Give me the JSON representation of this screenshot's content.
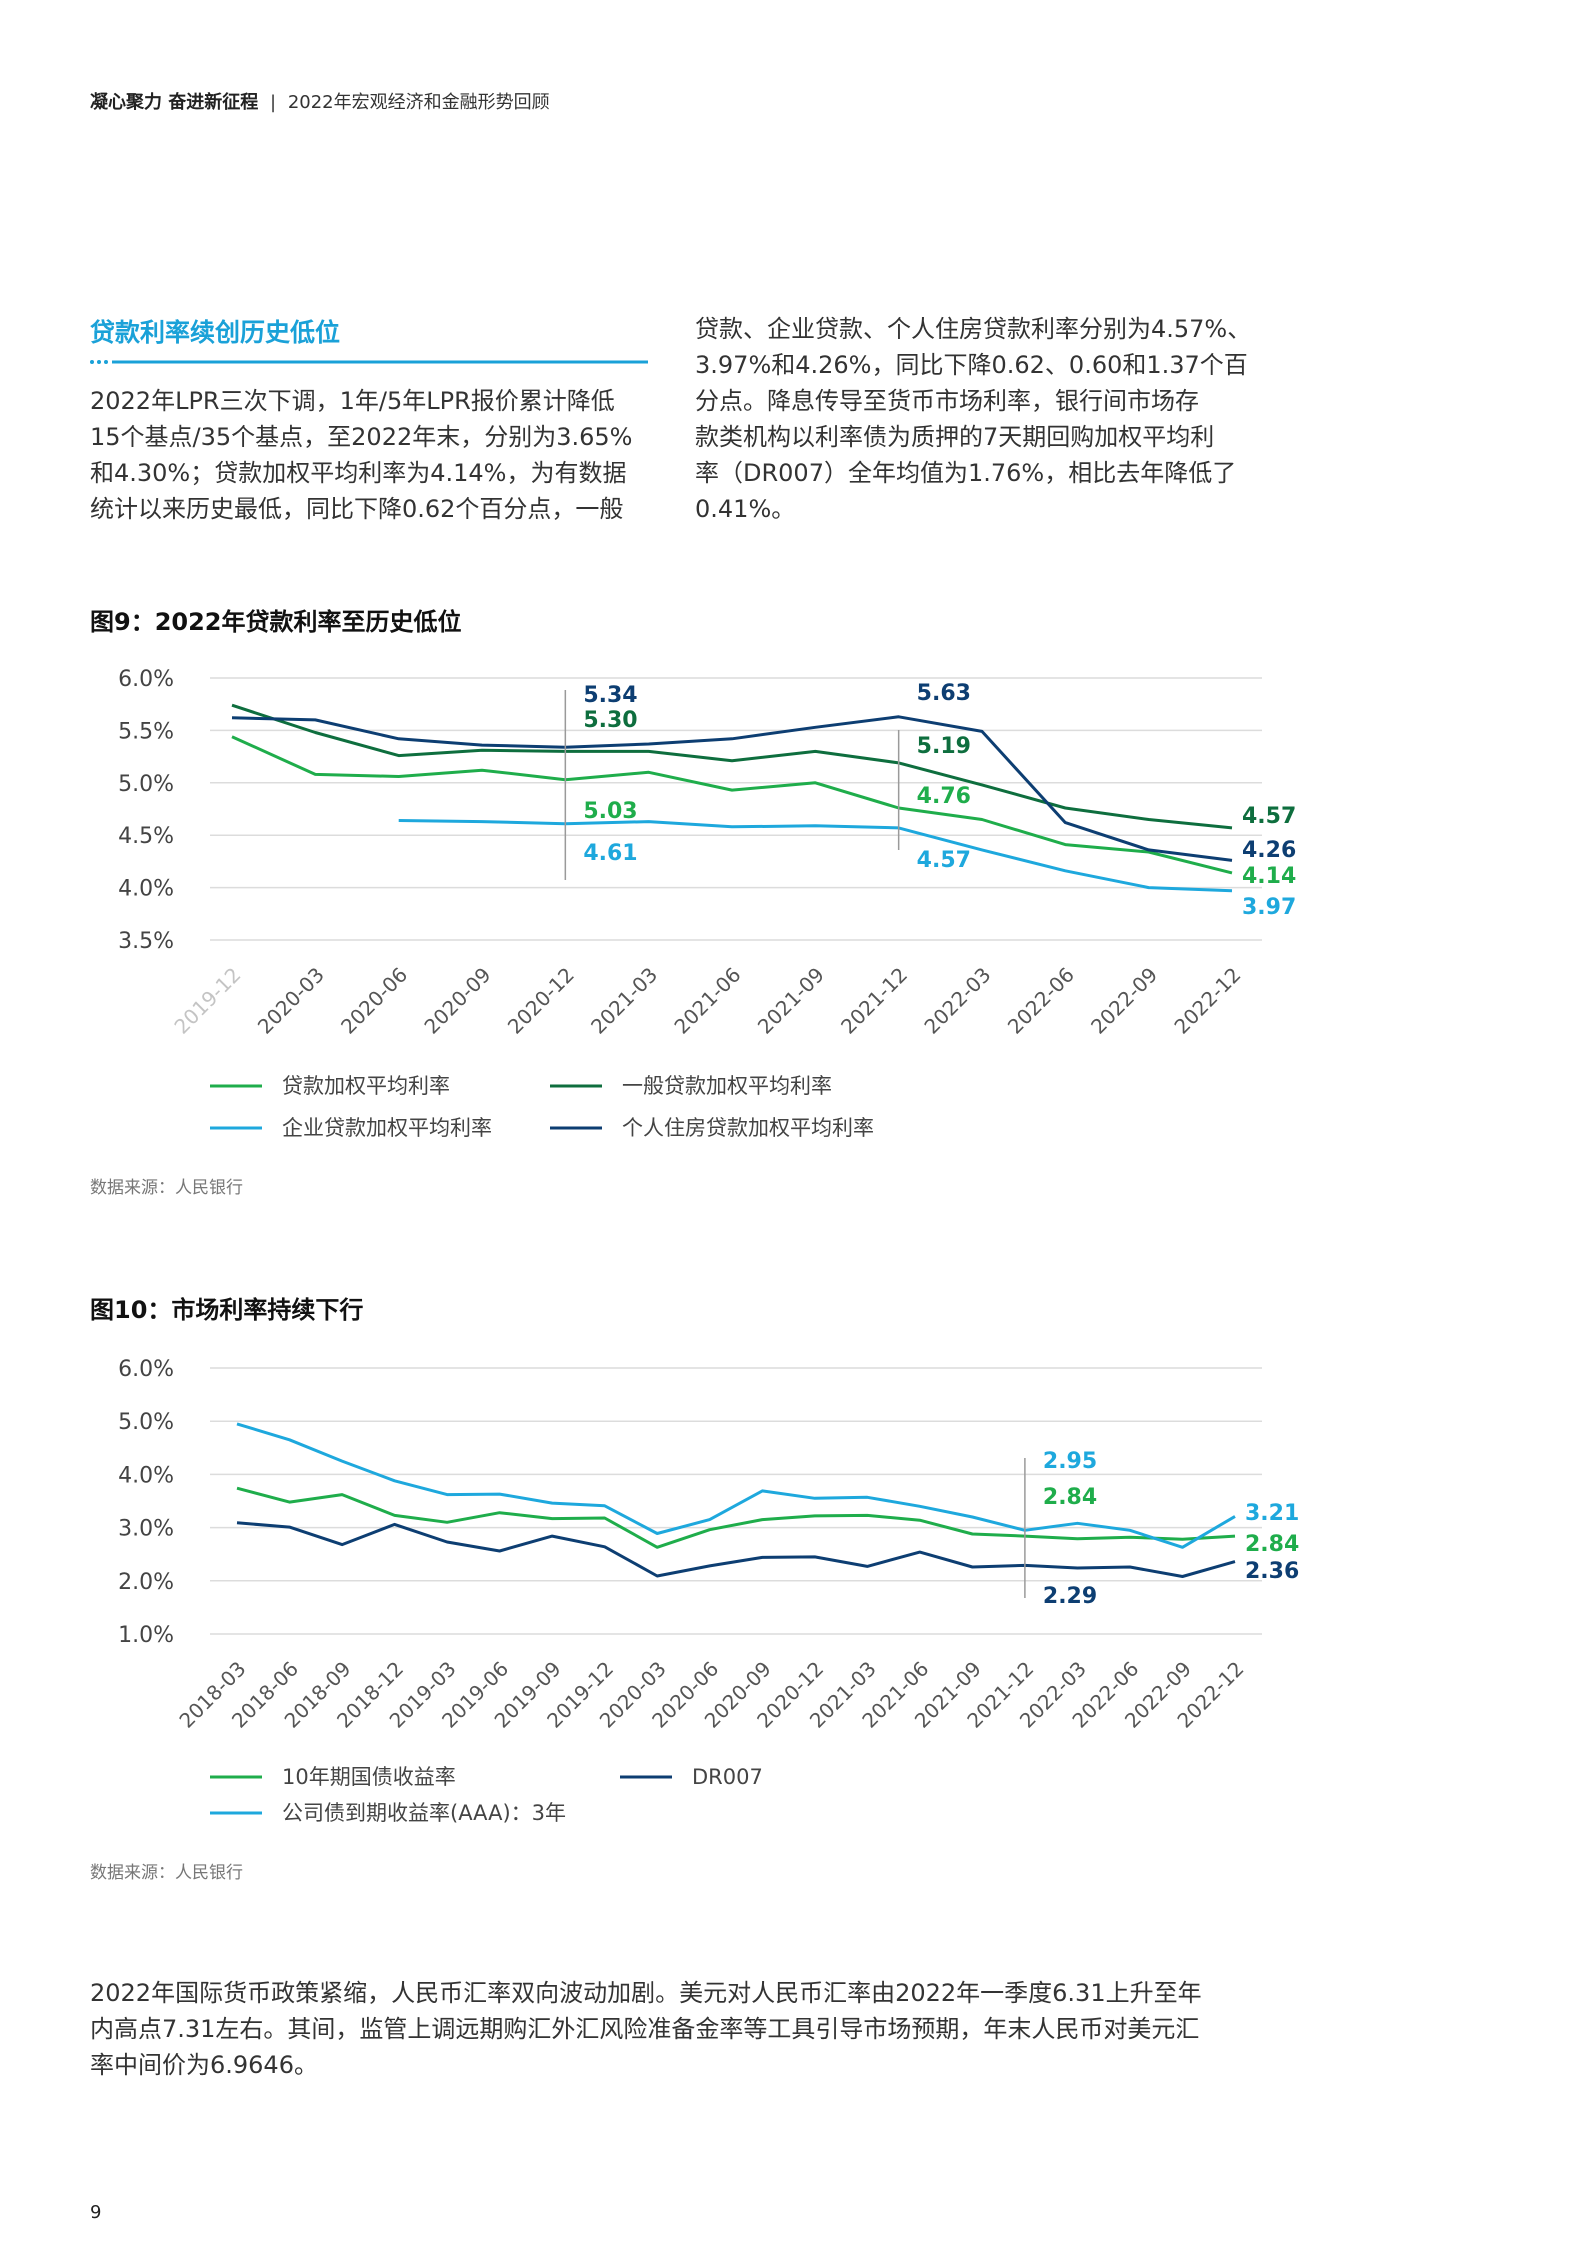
{
  "header": {
    "bold": "凝心聚力 奋进新征程",
    "sep": "|",
    "rest": "2022年宏观经济和金融形势回顾"
  },
  "section": {
    "title": "贷款利率续创历史低位",
    "left_lines": [
      "2022年LPR三次下调，1年/5年LPR报价累计降低",
      "15个基点/35个基点，至2022年末，分别为3.65%",
      "和4.30%；贷款加权平均利率为4.14%，为有数据",
      "统计以来历史最低，同比下降0.62个百分点，一般"
    ],
    "right_lines": [
      "贷款、企业贷款、个人住房贷款利率分别为4.57%、",
      "3.97%和4.26%，同比下降0.62、0.60和1.37个百",
      "分点。降息传导至货币市场利率，银行间市场存",
      "款类机构以利率债为质押的7天期回购加权平均利",
      "率（DR007）全年均值为1.76%，相比去年降低了",
      "0.41%。"
    ]
  },
  "figure9": {
    "title": "图9：2022年贷款利率至历史低位",
    "source": "数据来源：人民银行"
  },
  "figure10": {
    "title": "图10：市场利率持续下行",
    "source": "数据来源：人民银行"
  },
  "bottom_lines": [
    "2022年国际货币政策紧缩，人民币汇率双向波动加剧。美元对人民币汇率由2022年一季度6.31上升至年",
    "内高点7.31左右。其间，监管上调远期购汇外汇风险准备金率等工具引导市场预期，年末人民币对美元汇",
    "率中间价为6.9646。"
  ],
  "page_number": "9",
  "chart_data": [
    {
      "type": "line",
      "title": "图9：2022年贷款利率至历史低位",
      "categories": [
        "2019-12",
        "2020-03",
        "2020-06",
        "2020-09",
        "2020-12",
        "2021-03",
        "2021-06",
        "2021-09",
        "2021-12",
        "2022-03",
        "2022-06",
        "2022-09",
        "2022-12"
      ],
      "ylim": [
        3.5,
        6.0
      ],
      "yticks": [
        "3.5%",
        "4.0%",
        "4.5%",
        "5.0%",
        "5.5%",
        "6.0%"
      ],
      "series": [
        {
          "name": "贷款加权平均利率",
          "color": "#1fad4b",
          "values": [
            5.44,
            5.08,
            5.06,
            5.12,
            5.03,
            5.1,
            4.93,
            5.0,
            4.76,
            4.65,
            4.41,
            4.34,
            4.14
          ]
        },
        {
          "name": "一般贷款加权平均利率",
          "color": "#0e6e3e",
          "values": [
            5.74,
            5.48,
            5.26,
            5.31,
            5.3,
            5.3,
            5.21,
            5.3,
            5.19,
            4.98,
            4.76,
            4.65,
            4.57
          ]
        },
        {
          "name": "企业贷款加权平均利率",
          "color": "#1ea8dd",
          "values": [
            null,
            null,
            4.64,
            4.63,
            4.61,
            4.63,
            4.58,
            4.59,
            4.57,
            4.36,
            4.16,
            4.0,
            3.97
          ]
        },
        {
          "name": "个人住房贷款加权平均利率",
          "color": "#0d3e72",
          "values": [
            5.62,
            5.6,
            5.42,
            5.36,
            5.34,
            5.37,
            5.42,
            5.53,
            5.63,
            5.49,
            4.62,
            4.36,
            4.26
          ]
        }
      ],
      "annotations": [
        {
          "text": "5.34",
          "color": "#0d3e72",
          "x": "2020-12"
        },
        {
          "text": "5.30",
          "color": "#0e6e3e",
          "x": "2020-12"
        },
        {
          "text": "5.03",
          "color": "#1fad4b",
          "x": "2020-12"
        },
        {
          "text": "4.61",
          "color": "#1ea8dd",
          "x": "2020-12"
        },
        {
          "text": "5.63",
          "color": "#0d3e72",
          "x": "2021-12"
        },
        {
          "text": "5.19",
          "color": "#0e6e3e",
          "x": "2021-12"
        },
        {
          "text": "4.76",
          "color": "#1fad4b",
          "x": "2021-12"
        },
        {
          "text": "4.57",
          "color": "#1ea8dd",
          "x": "2021-12"
        },
        {
          "text": "4.57",
          "color": "#0e6e3e",
          "x": "2022-12"
        },
        {
          "text": "4.26",
          "color": "#0d3e72",
          "x": "2022-12"
        },
        {
          "text": "4.14",
          "color": "#1fad4b",
          "x": "2022-12"
        },
        {
          "text": "3.97",
          "color": "#1ea8dd",
          "x": "2022-12"
        }
      ]
    },
    {
      "type": "line",
      "title": "图10：市场利率持续下行",
      "categories": [
        "2018-03",
        "2018-06",
        "2018-09",
        "2018-12",
        "2019-03",
        "2019-06",
        "2019-09",
        "2019-12",
        "2020-03",
        "2020-06",
        "2020-09",
        "2020-12",
        "2021-03",
        "2021-06",
        "2021-09",
        "2021-12",
        "2022-03",
        "2022-06",
        "2022-09",
        "2022-12"
      ],
      "ylim": [
        1.0,
        6.0
      ],
      "yticks": [
        "1.0%",
        "2.0%",
        "3.0%",
        "4.0%",
        "5.0%",
        "6.0%"
      ],
      "series": [
        {
          "name": "10年期国债收益率",
          "color": "#1fad4b",
          "values": [
            3.74,
            3.48,
            3.62,
            3.23,
            3.1,
            3.28,
            3.17,
            3.18,
            2.63,
            2.96,
            3.15,
            3.22,
            3.23,
            3.14,
            2.88,
            2.84,
            2.79,
            2.82,
            2.78,
            2.84
          ]
        },
        {
          "name": "DR007",
          "color": "#0d3e72",
          "values": [
            3.09,
            3.01,
            2.68,
            3.06,
            2.73,
            2.56,
            2.84,
            2.64,
            2.09,
            2.28,
            2.44,
            2.45,
            2.27,
            2.54,
            2.26,
            2.29,
            2.24,
            2.26,
            2.08,
            2.36
          ]
        },
        {
          "name": "公司债到期收益率(AAA)：3年",
          "color": "#1ea8dd",
          "values": [
            4.95,
            4.65,
            4.25,
            3.88,
            3.62,
            3.63,
            3.46,
            3.41,
            2.89,
            3.15,
            3.69,
            3.55,
            3.57,
            3.4,
            3.2,
            2.95,
            3.08,
            2.95,
            2.63,
            3.21
          ]
        }
      ],
      "annotations": [
        {
          "text": "2.95",
          "color": "#1ea8dd",
          "x": "2021-12"
        },
        {
          "text": "2.84",
          "color": "#1fad4b",
          "x": "2021-12"
        },
        {
          "text": "2.29",
          "color": "#0d3e72",
          "x": "2021-12"
        },
        {
          "text": "3.21",
          "color": "#1ea8dd",
          "x": "2022-12"
        },
        {
          "text": "2.84",
          "color": "#1fad4b",
          "x": "2022-12"
        },
        {
          "text": "2.36",
          "color": "#0d3e72",
          "x": "2022-12"
        }
      ]
    }
  ]
}
